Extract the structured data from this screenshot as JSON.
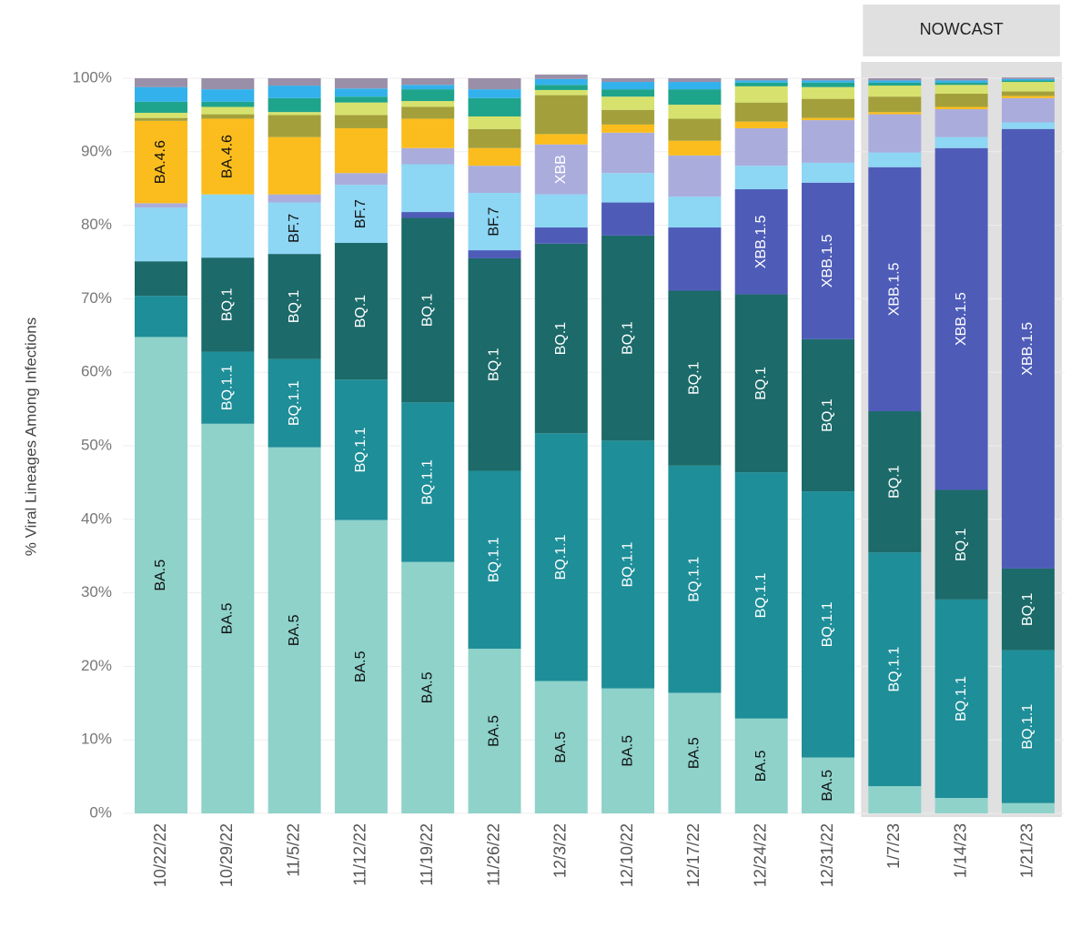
{
  "chart_data": {
    "type": "stacked_bar",
    "y_label": "% Viral Lineages Among Infections",
    "nowcast": {
      "label": "NOWCAST",
      "from": "1/7/23"
    },
    "categories": [
      "10/22/22",
      "10/29/22",
      "11/5/22",
      "11/12/22",
      "11/19/22",
      "11/26/22",
      "12/3/22",
      "12/10/22",
      "12/17/22",
      "12/24/22",
      "12/31/22",
      "1/7/23",
      "1/14/23",
      "1/21/23"
    ],
    "ylim": [
      0,
      100
    ],
    "yticks": [
      {
        "value": 0,
        "label": "0%"
      },
      {
        "value": 10,
        "label": "10%"
      },
      {
        "value": 20,
        "label": "20%"
      },
      {
        "value": 30,
        "label": "30%"
      },
      {
        "value": 40,
        "label": "40%"
      },
      {
        "value": 50,
        "label": "50%"
      },
      {
        "value": 60,
        "label": "60%"
      },
      {
        "value": 70,
        "label": "70%"
      },
      {
        "value": 80,
        "label": "80%"
      },
      {
        "value": 90,
        "label": "90%"
      },
      {
        "value": 100,
        "label": "100%"
      }
    ],
    "grid": true,
    "series": [
      {
        "name": "BA.5",
        "color": "#8ed2ca",
        "label_color": "#111",
        "values": [
          64.8,
          53.0,
          49.8,
          39.9,
          34.2,
          22.4,
          18.0,
          17.0,
          16.4,
          12.9,
          7.6,
          3.7,
          2.1,
          1.4
        ],
        "labels": [
          "BA.5",
          "BA.5",
          "BA.5",
          "BA.5",
          "BA.5",
          "BA.5",
          "BA.5",
          "BA.5",
          "BA.5",
          "BA.5",
          "BA.5",
          null,
          null,
          null
        ]
      },
      {
        "name": "BQ.1.1",
        "color": "#1e8e98",
        "label_color": "#fff",
        "values": [
          5.6,
          9.8,
          12.0,
          19.1,
          21.7,
          24.2,
          33.7,
          33.7,
          30.9,
          33.5,
          36.2,
          31.8,
          27.0,
          20.8
        ],
        "labels": [
          null,
          "BQ.1.1",
          "BQ.1.1",
          "BQ.1.1",
          "BQ.1.1",
          "BQ.1.1",
          "BQ.1.1",
          "BQ.1.1",
          "BQ.1.1",
          "BQ.1.1",
          "BQ.1.1",
          "BQ.1.1",
          "BQ.1.1",
          "BQ.1.1"
        ]
      },
      {
        "name": "BQ.1",
        "color": "#1c6a6a",
        "label_color": "#fff",
        "values": [
          4.7,
          12.8,
          14.3,
          18.6,
          25.1,
          28.9,
          25.8,
          27.9,
          23.8,
          24.2,
          20.7,
          19.2,
          14.9,
          11.1
        ],
        "labels": [
          null,
          "BQ.1",
          "BQ.1",
          "BQ.1",
          "BQ.1",
          "BQ.1",
          "BQ.1",
          "BQ.1",
          "BQ.1",
          "BQ.1",
          "BQ.1",
          "BQ.1",
          "BQ.1",
          "BQ.1"
        ]
      },
      {
        "name": "XBB.1.5",
        "color": "#4e5cb8",
        "label_color": "#fff",
        "values": [
          0,
          0,
          0,
          0,
          0.8,
          1.1,
          2.2,
          4.5,
          8.6,
          14.3,
          21.3,
          33.2,
          46.5,
          59.8
        ],
        "labels": [
          null,
          null,
          null,
          null,
          null,
          null,
          null,
          null,
          null,
          "XBB.1.5",
          "XBB.1.5",
          "XBB.1.5",
          "XBB.1.5",
          "XBB.1.5"
        ]
      },
      {
        "name": "BF.7",
        "color": "#8dd6f4",
        "label_color": "#111",
        "values": [
          7.3,
          8.6,
          7.0,
          7.9,
          6.5,
          7.8,
          4.5,
          4.0,
          4.2,
          3.2,
          2.7,
          2.0,
          1.5,
          0.9
        ],
        "labels": [
          null,
          null,
          "BF.7",
          "BF.7",
          null,
          "BF.7",
          null,
          null,
          null,
          null,
          null,
          null,
          null,
          null
        ]
      },
      {
        "name": "XBB",
        "color": "#aaaddc",
        "label_color": "#fff",
        "values": [
          0.6,
          0,
          1.1,
          1.6,
          2.2,
          3.7,
          6.8,
          5.5,
          5.6,
          5.1,
          5.8,
          5.2,
          3.8,
          3.3
        ],
        "labels": [
          null,
          null,
          null,
          null,
          null,
          null,
          "XBB",
          null,
          null,
          null,
          null,
          null,
          null,
          null
        ]
      },
      {
        "name": "BA.4.6",
        "color": "#fbbd1d",
        "label_color": "#111",
        "values": [
          11.2,
          10.3,
          7.8,
          6.1,
          4.0,
          2.4,
          1.4,
          1.1,
          2.0,
          0.9,
          0.3,
          0.3,
          0.3,
          0.3
        ],
        "labels": [
          "BA.4.6",
          "BA.4.6",
          null,
          null,
          null,
          null,
          null,
          null,
          null,
          null,
          null,
          null,
          null,
          null
        ]
      },
      {
        "color": "#a3a03b",
        "values": [
          0.4,
          0.6,
          3.0,
          1.8,
          1.6,
          2.6,
          5.3,
          2.0,
          3.0,
          2.6,
          2.6,
          2.1,
          1.8,
          0.6
        ]
      },
      {
        "color": "#d6e26d",
        "values": [
          0.7,
          1.0,
          0.4,
          1.7,
          0.8,
          1.7,
          0.7,
          1.8,
          1.9,
          2.2,
          1.6,
          1.5,
          1.2,
          1.3
        ]
      },
      {
        "color": "#1fa48c",
        "values": [
          1.5,
          0.7,
          1.9,
          0.8,
          1.6,
          2.5,
          0.7,
          1.0,
          2.1,
          0.5,
          0.6,
          0.4,
          0.3,
          0.2
        ]
      },
      {
        "color": "#33b1ec",
        "values": [
          2.0,
          1.7,
          1.7,
          1.1,
          0.6,
          1.2,
          0.8,
          1.0,
          1.0,
          0.3,
          0.3,
          0.3,
          0.3,
          0.2
        ]
      },
      {
        "color": "#9a8fa8",
        "values": [
          1.2,
          1.5,
          1.0,
          1.4,
          0.9,
          1.5,
          0.6,
          0.5,
          0.5,
          0.3,
          0.3,
          0.3,
          0.3,
          0.2
        ]
      }
    ]
  }
}
